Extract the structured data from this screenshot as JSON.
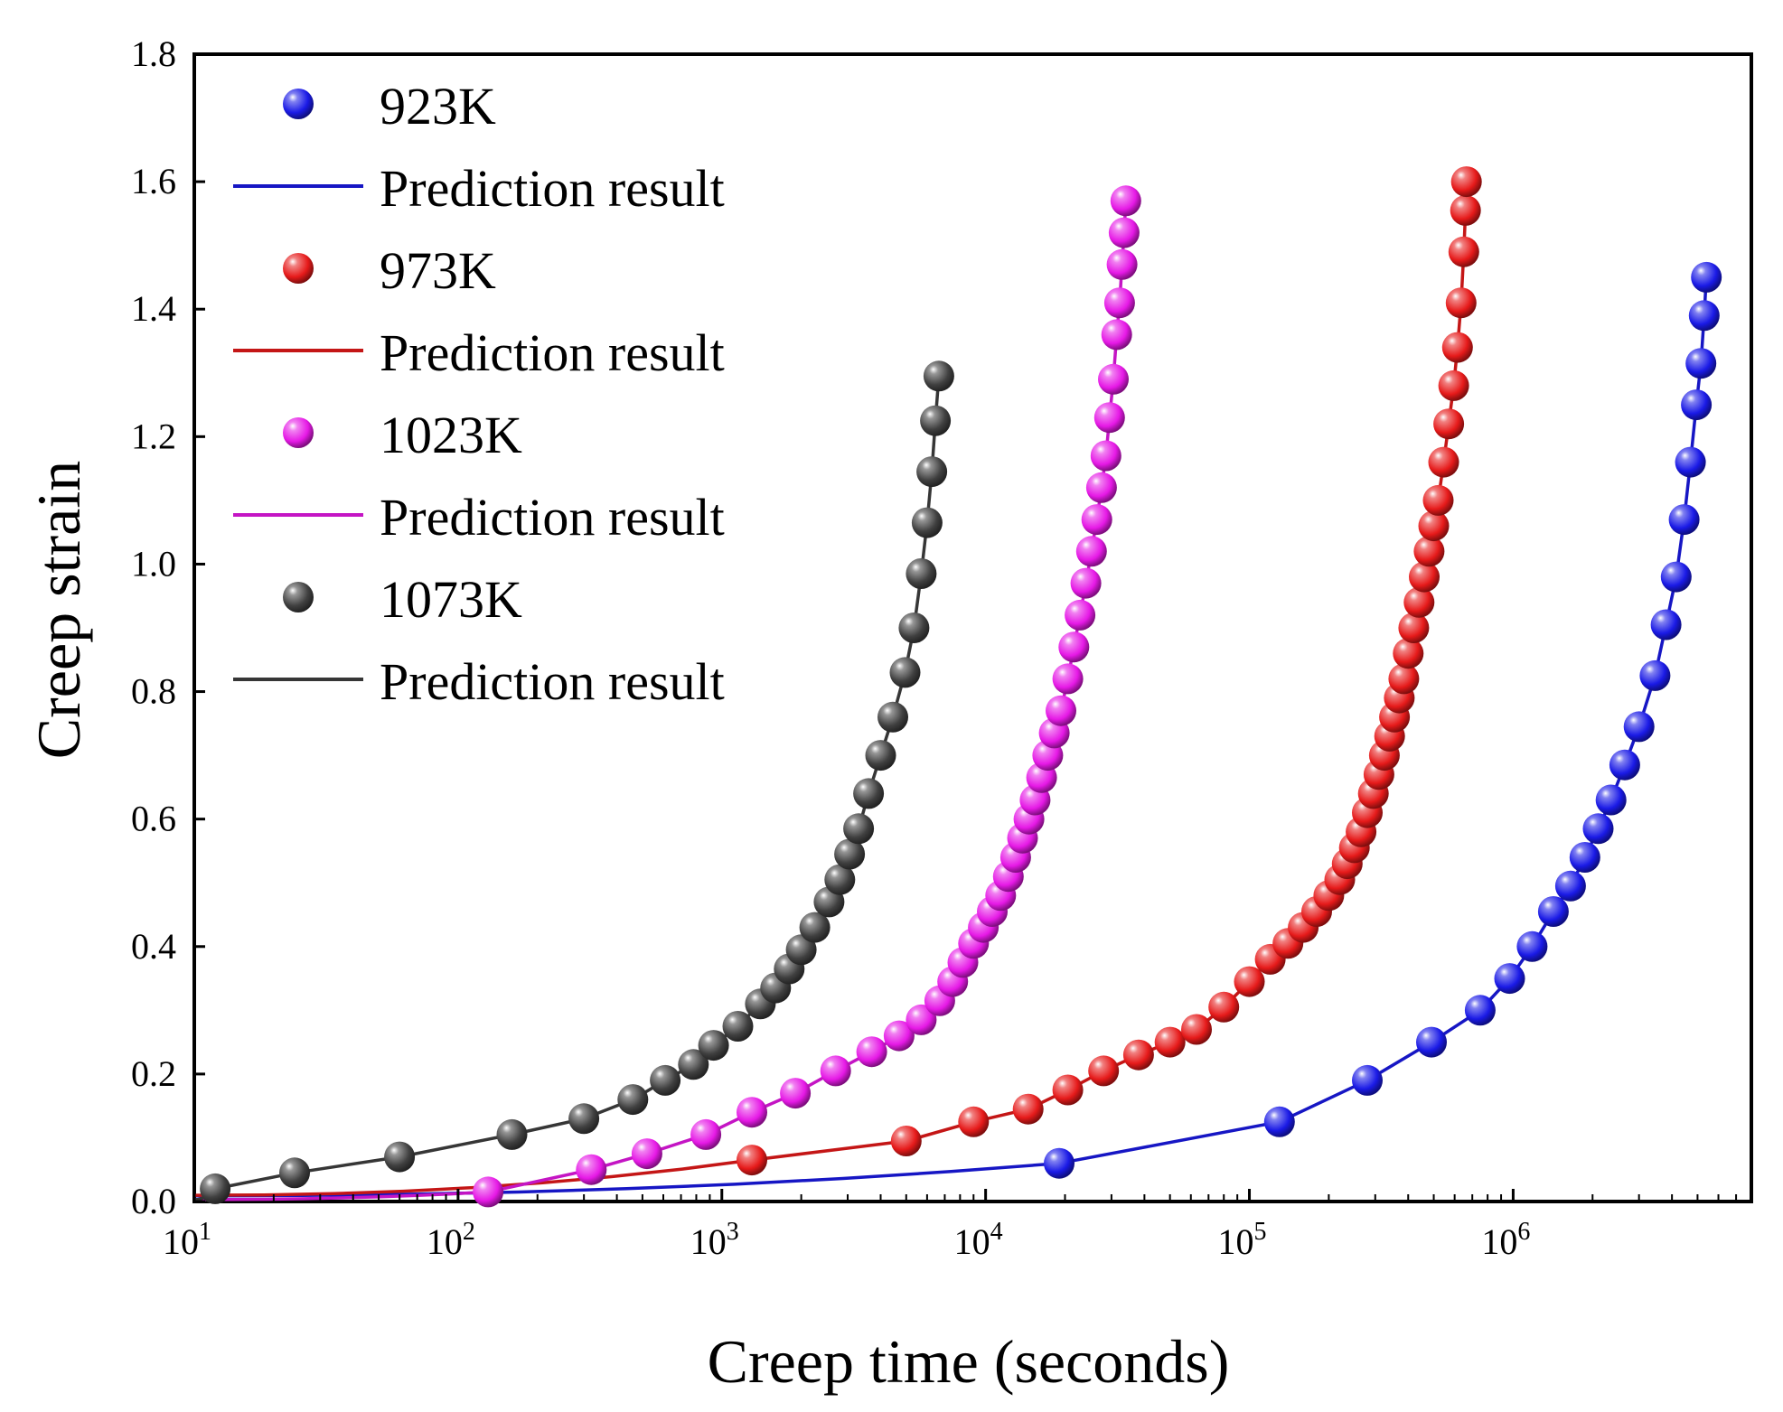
{
  "chart_data": {
    "type": "scatter",
    "title": "",
    "xlabel": "Creep time (seconds)",
    "ylabel": "Creep strain",
    "xscale": "log",
    "xlim": [
      10,
      8000000
    ],
    "ylim": [
      0.0,
      1.8
    ],
    "grid": false,
    "legend_position": "top-left",
    "x_ticks": [
      {
        "value": 10,
        "base": "10",
        "exp": "1"
      },
      {
        "value": 100,
        "base": "10",
        "exp": "2"
      },
      {
        "value": 1000,
        "base": "10",
        "exp": "3"
      },
      {
        "value": 10000,
        "base": "10",
        "exp": "4"
      },
      {
        "value": 100000,
        "base": "10",
        "exp": "5"
      },
      {
        "value": 1000000,
        "base": "10",
        "exp": "6"
      }
    ],
    "y_ticks": [
      {
        "value": 0.0,
        "label": "0.0"
      },
      {
        "value": 0.2,
        "label": "0.2"
      },
      {
        "value": 0.4,
        "label": "0.4"
      },
      {
        "value": 0.6,
        "label": "0.6"
      },
      {
        "value": 0.8,
        "label": "0.8"
      },
      {
        "value": 1.0,
        "label": "1.0"
      },
      {
        "value": 1.2,
        "label": "1.2"
      },
      {
        "value": 1.4,
        "label": "1.4"
      },
      {
        "value": 1.6,
        "label": "1.6"
      },
      {
        "value": 1.8,
        "label": "1.8"
      }
    ],
    "series": [
      {
        "name": "923K",
        "line_name": "Prediction result",
        "color": "#1a1ae6",
        "points": [
          [
            19000,
            0.06
          ],
          [
            130000,
            0.125
          ],
          [
            280000,
            0.19
          ],
          [
            490000,
            0.25
          ],
          [
            750000,
            0.3
          ],
          [
            970000,
            0.35
          ],
          [
            1180000,
            0.4
          ],
          [
            1420000,
            0.455
          ],
          [
            1650000,
            0.495
          ],
          [
            1870000,
            0.54
          ],
          [
            2100000,
            0.585
          ],
          [
            2350000,
            0.63
          ],
          [
            2650000,
            0.685
          ],
          [
            3000000,
            0.745
          ],
          [
            3450000,
            0.825
          ],
          [
            3800000,
            0.905
          ],
          [
            4150000,
            0.98
          ],
          [
            4450000,
            1.07
          ],
          [
            4700000,
            1.16
          ],
          [
            4950000,
            1.25
          ],
          [
            5150000,
            1.315
          ],
          [
            5300000,
            1.39
          ],
          [
            5400000,
            1.45
          ]
        ]
      },
      {
        "name": "973K",
        "line_name": "Prediction result",
        "color": "#e61a1a",
        "points": [
          [
            1300,
            0.065
          ],
          [
            5000,
            0.095
          ],
          [
            9000,
            0.125
          ],
          [
            14500,
            0.145
          ],
          [
            20500,
            0.175
          ],
          [
            28000,
            0.205
          ],
          [
            38000,
            0.23
          ],
          [
            50000,
            0.25
          ],
          [
            63000,
            0.27
          ],
          [
            80000,
            0.305
          ],
          [
            100000,
            0.345
          ],
          [
            120000,
            0.38
          ],
          [
            140000,
            0.405
          ],
          [
            160000,
            0.43
          ],
          [
            180000,
            0.455
          ],
          [
            200000,
            0.48
          ],
          [
            220000,
            0.505
          ],
          [
            235000,
            0.53
          ],
          [
            250000,
            0.555
          ],
          [
            265000,
            0.58
          ],
          [
            280000,
            0.61
          ],
          [
            295000,
            0.64
          ],
          [
            310000,
            0.67
          ],
          [
            325000,
            0.7
          ],
          [
            340000,
            0.73
          ],
          [
            355000,
            0.76
          ],
          [
            370000,
            0.79
          ],
          [
            385000,
            0.82
          ],
          [
            400000,
            0.86
          ],
          [
            420000,
            0.9
          ],
          [
            440000,
            0.94
          ],
          [
            460000,
            0.98
          ],
          [
            480000,
            1.02
          ],
          [
            500000,
            1.06
          ],
          [
            520000,
            1.1
          ],
          [
            545000,
            1.16
          ],
          [
            570000,
            1.22
          ],
          [
            595000,
            1.28
          ],
          [
            615000,
            1.34
          ],
          [
            635000,
            1.41
          ],
          [
            650000,
            1.49
          ],
          [
            660000,
            1.555
          ],
          [
            665000,
            1.6
          ]
        ]
      },
      {
        "name": "1023K",
        "line_name": "Prediction result",
        "color": "#e619e6",
        "points": [
          [
            130,
            0.015
          ],
          [
            320,
            0.05
          ],
          [
            520,
            0.075
          ],
          [
            870,
            0.105
          ],
          [
            1300,
            0.14
          ],
          [
            1900,
            0.17
          ],
          [
            2700,
            0.205
          ],
          [
            3700,
            0.235
          ],
          [
            4700,
            0.26
          ],
          [
            5700,
            0.285
          ],
          [
            6700,
            0.315
          ],
          [
            7500,
            0.345
          ],
          [
            8200,
            0.375
          ],
          [
            9000,
            0.405
          ],
          [
            9800,
            0.43
          ],
          [
            10600,
            0.455
          ],
          [
            11400,
            0.48
          ],
          [
            12200,
            0.51
          ],
          [
            13000,
            0.54
          ],
          [
            13800,
            0.57
          ],
          [
            14600,
            0.6
          ],
          [
            15400,
            0.63
          ],
          [
            16300,
            0.665
          ],
          [
            17200,
            0.7
          ],
          [
            18200,
            0.735
          ],
          [
            19300,
            0.77
          ],
          [
            20500,
            0.82
          ],
          [
            21600,
            0.87
          ],
          [
            22800,
            0.92
          ],
          [
            24000,
            0.97
          ],
          [
            25200,
            1.02
          ],
          [
            26400,
            1.07
          ],
          [
            27500,
            1.12
          ],
          [
            28600,
            1.17
          ],
          [
            29500,
            1.23
          ],
          [
            30500,
            1.29
          ],
          [
            31400,
            1.36
          ],
          [
            32200,
            1.41
          ],
          [
            32900,
            1.47
          ],
          [
            33500,
            1.52
          ],
          [
            34000,
            1.57
          ]
        ]
      },
      {
        "name": "1073K",
        "line_name": "Prediction result",
        "color": "#404040",
        "points": [
          [
            12,
            0.02
          ],
          [
            24,
            0.045
          ],
          [
            60,
            0.07
          ],
          [
            160,
            0.105
          ],
          [
            300,
            0.13
          ],
          [
            460,
            0.16
          ],
          [
            610,
            0.19
          ],
          [
            780,
            0.215
          ],
          [
            930,
            0.245
          ],
          [
            1150,
            0.275
          ],
          [
            1400,
            0.31
          ],
          [
            1600,
            0.335
          ],
          [
            1800,
            0.365
          ],
          [
            2000,
            0.395
          ],
          [
            2250,
            0.43
          ],
          [
            2550,
            0.47
          ],
          [
            2800,
            0.505
          ],
          [
            3050,
            0.545
          ],
          [
            3300,
            0.585
          ],
          [
            3600,
            0.64
          ],
          [
            4000,
            0.7
          ],
          [
            4450,
            0.76
          ],
          [
            4950,
            0.83
          ],
          [
            5350,
            0.9
          ],
          [
            5700,
            0.985
          ],
          [
            6000,
            1.065
          ],
          [
            6250,
            1.145
          ],
          [
            6450,
            1.225
          ],
          [
            6650,
            1.295
          ]
        ]
      }
    ]
  }
}
